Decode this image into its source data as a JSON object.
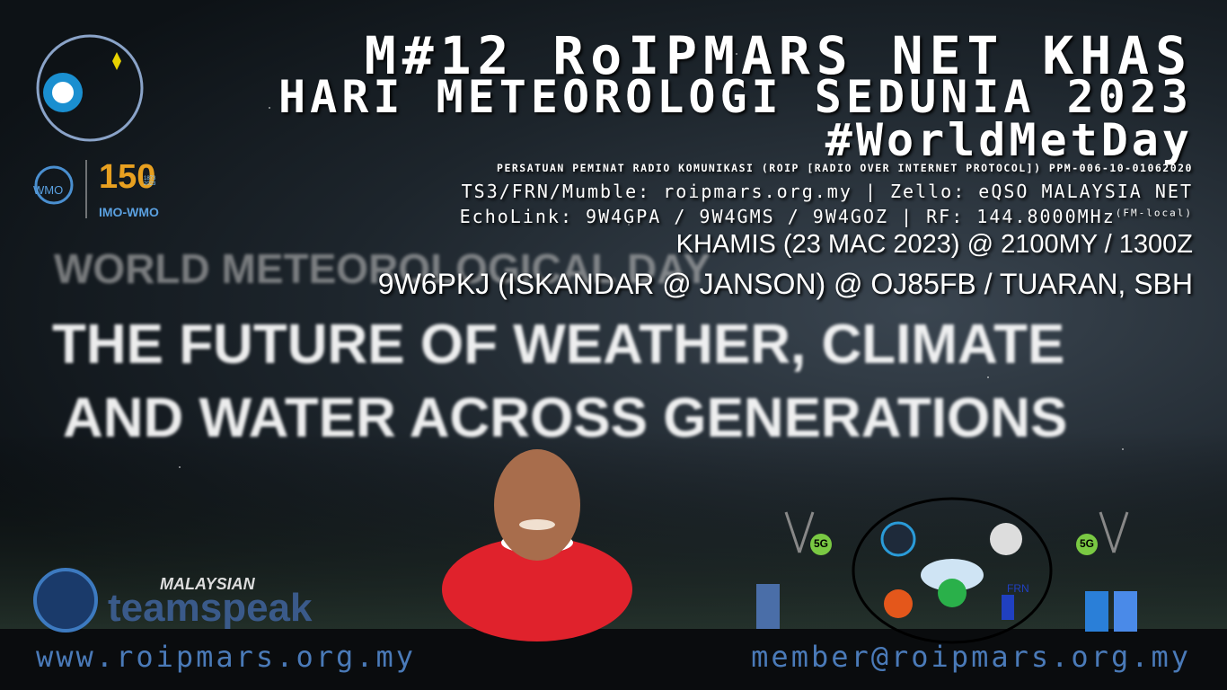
{
  "header": {
    "title": "M#12 RoIPMARS NET KHAS",
    "subtitle": "HARI METEOROLOGI SEDUNIA 2023",
    "hashtag": "#WorldMetDay",
    "organization": "PERSATUAN PEMINAT RADIO KOMUNIKASI (ROIP [RADIO OVER INTERNET PROTOCOL]) PPM-006-10-01062020",
    "networks": "TS3/FRN/Mumble: roipmars.org.my | Zello: eQSO MALAYSIA NET",
    "echolink": "EchoLink: 9W4GPA / 9W4GMS / 9W4GOZ | RF: 144.8000MHz",
    "echolink_note": "(FM-local)",
    "schedule": "KHAMIS (23 MAC 2023) @ 2100MY / 1300Z",
    "host": "9W6PKJ (ISKANDAR @ JANSON) @ OJ85FB / TUARAN, SBH"
  },
  "theme": {
    "event": "WORLD METEOROLOGICAL DAY",
    "line1": "THE FUTURE OF WEATHER, CLIMATE",
    "line2": "AND WATER ACROSS GENERATIONS"
  },
  "logos": {
    "wmo": "WMO",
    "anniversary": "150",
    "years": "1873 2023",
    "imo": "IMO-WMO",
    "teamspeak_country": "MALAYSIAN",
    "teamspeak": "teamspeak"
  },
  "diagram": {
    "left_5g": "5G",
    "right_5g": "5G",
    "frn": "FRN"
  },
  "footer": {
    "website": "www.roipmars.org.my",
    "email": "member@roipmars.org.my"
  }
}
